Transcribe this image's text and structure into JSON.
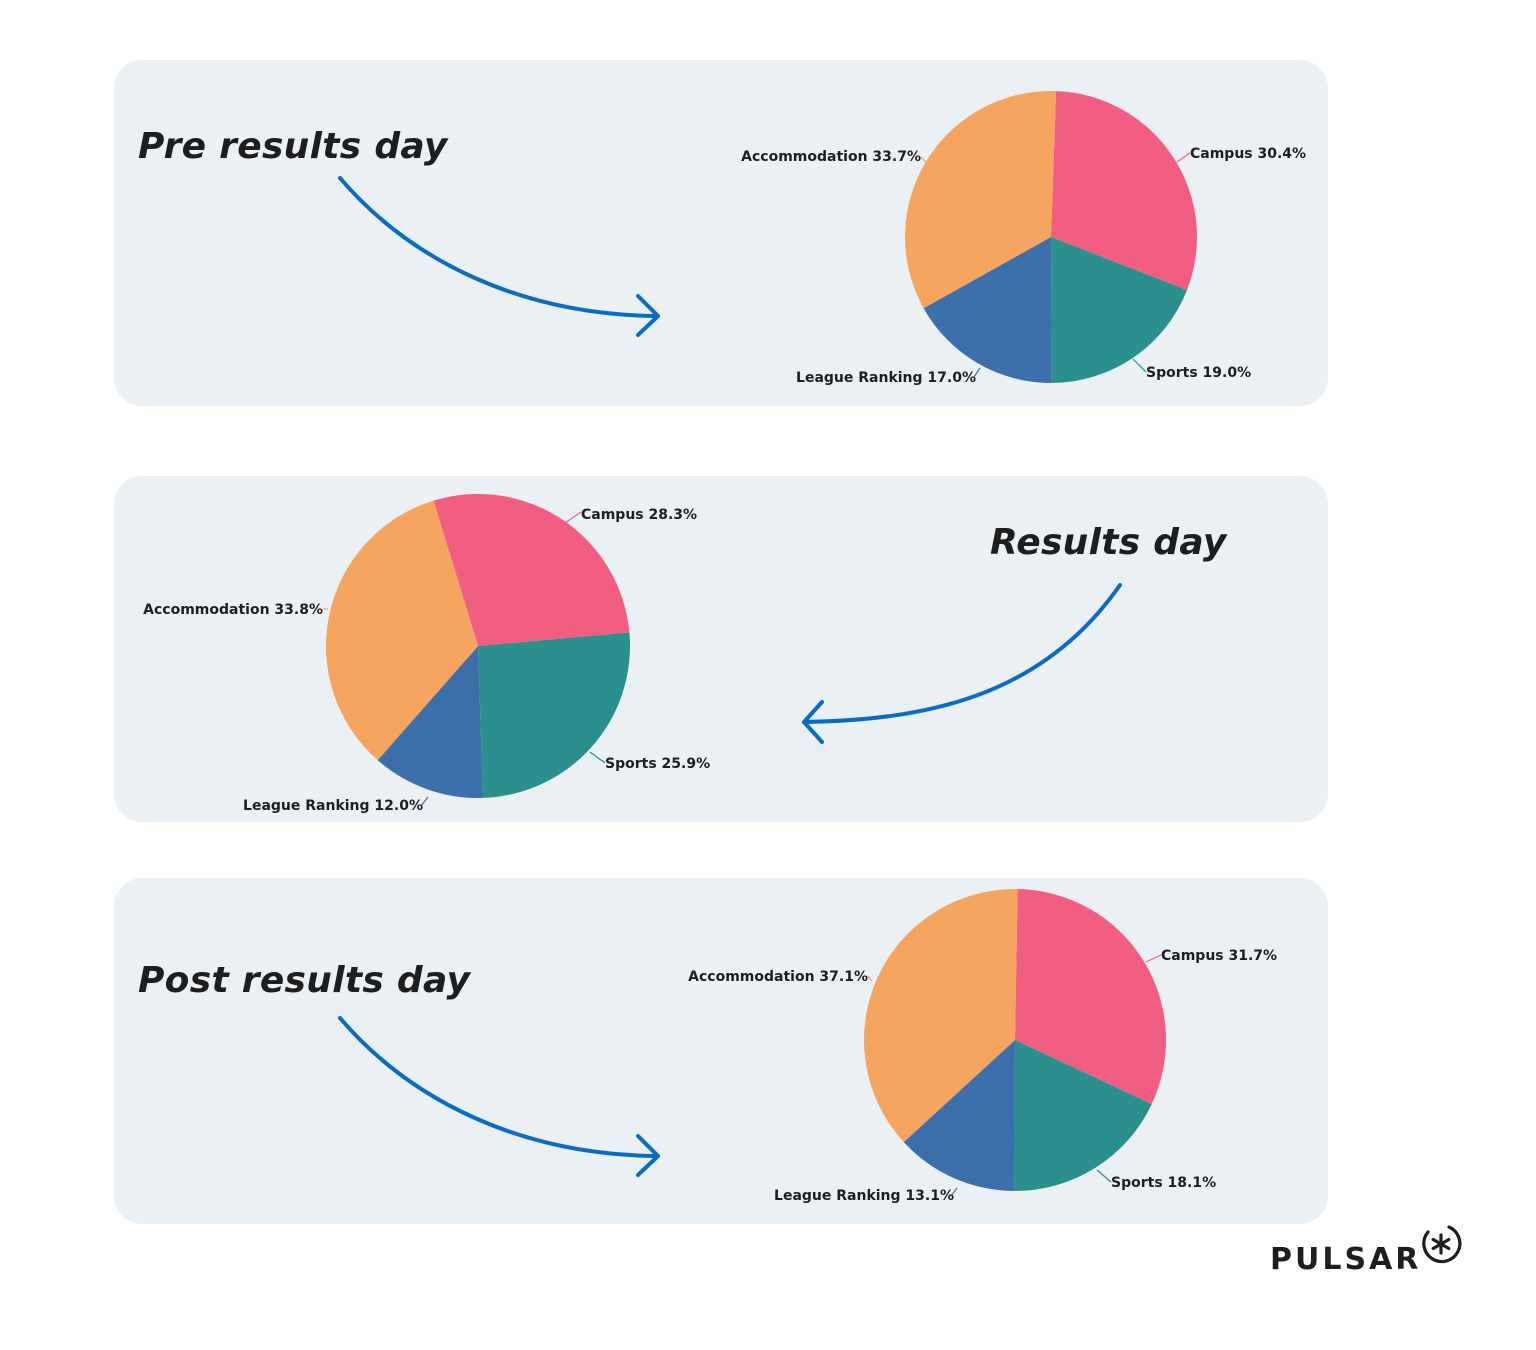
{
  "headings": [
    "Pre results day",
    "Results day",
    "Post results day"
  ],
  "colors": {
    "Accommodation": "#f5a55f",
    "Campus": "#f15e82",
    "Sports": "#2b8f8d",
    "League Ranking": "#3d6fab",
    "arrow": "#0b6cc6",
    "panel": "#ebf0f5"
  },
  "chart_data": [
    {
      "type": "pie",
      "title": "Pre results day",
      "slices": [
        {
          "label": "Campus",
          "value": 30.4,
          "text": "Campus 30.4%"
        },
        {
          "label": "Sports",
          "value": 19.0,
          "text": "Sports 19.0%"
        },
        {
          "label": "League Ranking",
          "value": 17.0,
          "text": "League Ranking 17.0%"
        },
        {
          "label": "Accommodation",
          "value": 33.7,
          "text": "Accommodation 33.7%"
        }
      ]
    },
    {
      "type": "pie",
      "title": "Results day",
      "slices": [
        {
          "label": "Campus",
          "value": 28.3,
          "text": "Campus 28.3%"
        },
        {
          "label": "Sports",
          "value": 25.9,
          "text": "Sports 25.9%"
        },
        {
          "label": "League Ranking",
          "value": 12.0,
          "text": "League Ranking 12.0%"
        },
        {
          "label": "Accommodation",
          "value": 33.8,
          "text": "Accommodation 33.8%"
        }
      ]
    },
    {
      "type": "pie",
      "title": "Post results day",
      "slices": [
        {
          "label": "Campus",
          "value": 31.7,
          "text": "Campus 31.7%"
        },
        {
          "label": "Sports",
          "value": 18.1,
          "text": "Sports 18.1%"
        },
        {
          "label": "League Ranking",
          "value": 13.1,
          "text": "League Ranking 13.1%"
        },
        {
          "label": "Accommodation",
          "value": 37.1,
          "text": "Accommodation 37.1%"
        }
      ]
    }
  ],
  "logo": {
    "text": "PULSAR",
    "icon": "asterisk-circle-icon"
  }
}
